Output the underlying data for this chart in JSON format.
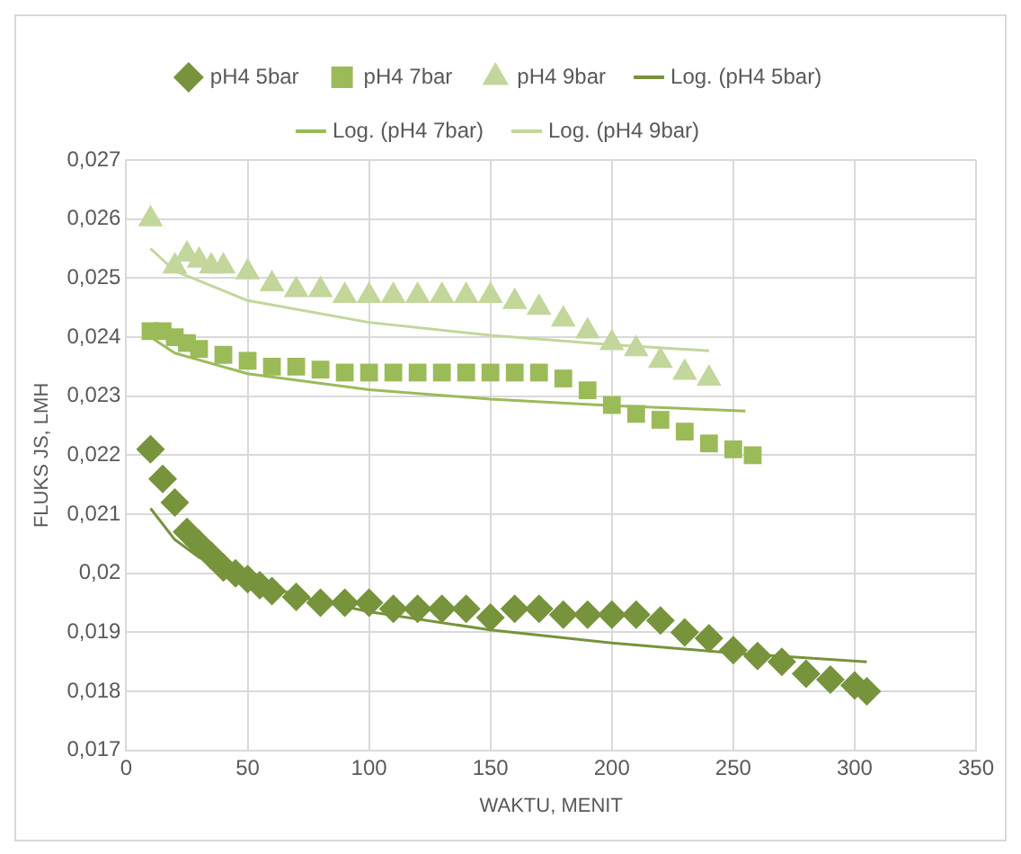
{
  "chart_data": {
    "type": "scatter",
    "xlabel": "WAKTU, MENIT",
    "ylabel": "FLUKS JS, LMH",
    "xlim": [
      0,
      350
    ],
    "xticks": [
      0,
      50,
      100,
      150,
      200,
      250,
      300,
      350
    ],
    "ylim": [
      0.017,
      0.027
    ],
    "yticks": [
      {
        "value": 0.017,
        "label": "0,017"
      },
      {
        "value": 0.018,
        "label": "0,018"
      },
      {
        "value": 0.019,
        "label": "0,019"
      },
      {
        "value": 0.02,
        "label": "0,02"
      },
      {
        "value": 0.021,
        "label": "0,021"
      },
      {
        "value": 0.022,
        "label": "0,022"
      },
      {
        "value": 0.023,
        "label": "0,023"
      },
      {
        "value": 0.024,
        "label": "0,024"
      },
      {
        "value": 0.025,
        "label": "0,025"
      },
      {
        "value": 0.026,
        "label": "0,026"
      },
      {
        "value": 0.027,
        "label": "0,027"
      }
    ],
    "grid": true,
    "legend": "top",
    "series": [
      {
        "name": "pH4 5bar",
        "type": "scatter",
        "marker": "diamond",
        "color": "#77933c",
        "x": [
          10,
          15,
          20,
          25,
          30,
          35,
          40,
          45,
          50,
          55,
          60,
          70,
          80,
          90,
          100,
          110,
          120,
          130,
          140,
          150,
          160,
          170,
          180,
          190,
          200,
          210,
          220,
          230,
          240,
          250,
          260,
          270,
          280,
          290,
          300,
          305
        ],
        "values": [
          0.0221,
          0.0216,
          0.0212,
          0.0207,
          0.0205,
          0.0203,
          0.0201,
          0.02,
          0.0199,
          0.0198,
          0.0197,
          0.0196,
          0.0195,
          0.0195,
          0.0195,
          0.0194,
          0.0194,
          0.0194,
          0.0194,
          0.01925,
          0.0194,
          0.0194,
          0.0193,
          0.0193,
          0.0193,
          0.0193,
          0.0192,
          0.019,
          0.0189,
          0.0187,
          0.0186,
          0.0185,
          0.0183,
          0.0182,
          0.0181,
          0.018
        ]
      },
      {
        "name": "pH4 7bar",
        "type": "scatter",
        "marker": "square",
        "color": "#9bbb59",
        "x": [
          10,
          15,
          20,
          25,
          30,
          40,
          50,
          60,
          70,
          80,
          90,
          100,
          110,
          120,
          130,
          140,
          150,
          160,
          170,
          180,
          190,
          200,
          210,
          220,
          230,
          240,
          250,
          258
        ],
        "values": [
          0.0241,
          0.0241,
          0.024,
          0.0239,
          0.0238,
          0.0237,
          0.0236,
          0.0235,
          0.0235,
          0.02345,
          0.0234,
          0.0234,
          0.0234,
          0.0234,
          0.0234,
          0.0234,
          0.0234,
          0.0234,
          0.0234,
          0.0233,
          0.0231,
          0.02285,
          0.0227,
          0.0226,
          0.0224,
          0.0222,
          0.0221,
          0.022
        ]
      },
      {
        "name": "pH4 9bar",
        "type": "scatter",
        "marker": "triangle",
        "color": "#c3d69b",
        "x": [
          10,
          20,
          25,
          30,
          35,
          40,
          50,
          60,
          70,
          80,
          90,
          100,
          110,
          120,
          130,
          140,
          150,
          160,
          170,
          180,
          190,
          200,
          210,
          220,
          230,
          240
        ],
        "values": [
          0.026,
          0.0252,
          0.0254,
          0.0253,
          0.0252,
          0.0252,
          0.0251,
          0.0249,
          0.0248,
          0.0248,
          0.0247,
          0.0247,
          0.0247,
          0.0247,
          0.0247,
          0.0247,
          0.0247,
          0.0246,
          0.0245,
          0.0243,
          0.0241,
          0.0239,
          0.0238,
          0.0236,
          0.0234,
          0.0233
        ]
      },
      {
        "name": "Log. (pH4 5bar)",
        "type": "line",
        "marker": "none",
        "color": "#77933c",
        "x": [
          10,
          20,
          30,
          50,
          75,
          100,
          150,
          200,
          250,
          305
        ],
        "values": [
          0.0211,
          0.02057,
          0.02027,
          0.01988,
          0.01957,
          0.01935,
          0.01904,
          0.01882,
          0.01865,
          0.0185
        ]
      },
      {
        "name": "Log. (pH4 7bar)",
        "type": "line",
        "marker": "none",
        "color": "#9bbb59",
        "x": [
          10,
          20,
          50,
          100,
          150,
          200,
          255
        ],
        "values": [
          0.024,
          0.02373,
          0.02338,
          0.02311,
          0.02295,
          0.02284,
          0.02275
        ]
      },
      {
        "name": "Log. (pH4 9bar)",
        "type": "line",
        "marker": "none",
        "color": "#c3d69b",
        "x": [
          10,
          20,
          50,
          100,
          150,
          200,
          240
        ],
        "values": [
          0.0255,
          0.02512,
          0.02462,
          0.02425,
          0.02403,
          0.02387,
          0.02377
        ]
      }
    ]
  }
}
